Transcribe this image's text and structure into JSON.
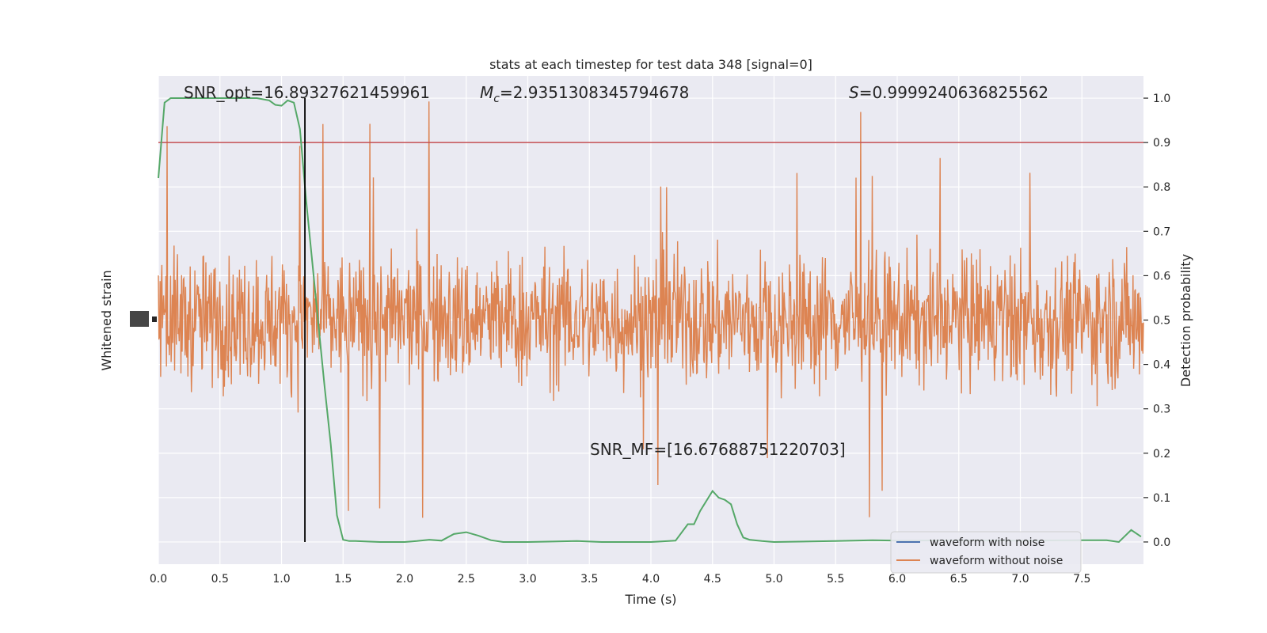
{
  "chart_data": {
    "type": "line",
    "title": "stats at each timestep for test data 348 [signal=0]",
    "xlabel": "Time (s)",
    "ylabel_left": "Whitened strain",
    "ylabel_right": "Detection probability",
    "xlim": [
      0.0,
      8.0
    ],
    "ylim_right": [
      -0.05,
      1.05
    ],
    "ylim_strain": [
      -2.0,
      2.0
    ],
    "x_ticks": [
      "0.0",
      "0.5",
      "1.0",
      "1.5",
      "2.0",
      "2.5",
      "3.0",
      "3.5",
      "4.0",
      "4.5",
      "5.0",
      "5.5",
      "6.0",
      "6.5",
      "7.0",
      "7.5"
    ],
    "x_tick_values": [
      0.0,
      0.5,
      1.0,
      1.5,
      2.0,
      2.5,
      3.0,
      3.5,
      4.0,
      4.5,
      5.0,
      5.5,
      6.0,
      6.5,
      7.0,
      7.5
    ],
    "y_ticks_right": [
      "0.0",
      "0.1",
      "0.2",
      "0.3",
      "0.4",
      "0.5",
      "0.6",
      "0.7",
      "0.8",
      "0.9",
      "1.0"
    ],
    "y_tick_values_right": [
      0.0,
      0.1,
      0.2,
      0.3,
      0.4,
      0.5,
      0.6,
      0.7,
      0.8,
      0.9,
      1.0
    ],
    "threshold": 0.9,
    "vertical_line_time": 1.19,
    "annotations": {
      "snr_opt": "SNR_opt=16.89327621459961",
      "mc_symbol": "M",
      "mc_sub": "c",
      "mc_value": "=2.9351308345794678",
      "s_symbol": "S",
      "s_value": "=0.9999240636825562",
      "snr_mf": "SNR_MF=[16.67688751220703]"
    },
    "series": [
      {
        "name": "detection probability",
        "x": [
          0.0,
          0.05,
          0.1,
          0.2,
          0.3,
          0.4,
          0.5,
          0.6,
          0.7,
          0.8,
          0.9,
          0.95,
          1.0,
          1.05,
          1.1,
          1.15,
          1.2,
          1.25,
          1.3,
          1.35,
          1.4,
          1.45,
          1.5,
          1.55,
          1.6,
          1.8,
          2.0,
          2.1,
          2.2,
          2.3,
          2.4,
          2.5,
          2.6,
          2.7,
          2.8,
          3.0,
          3.4,
          3.6,
          4.0,
          4.2,
          4.3,
          4.35,
          4.4,
          4.5,
          4.55,
          4.6,
          4.65,
          4.7,
          4.75,
          4.8,
          4.9,
          5.0,
          5.5,
          5.8,
          6.0,
          6.5,
          7.0,
          7.5,
          7.7,
          7.8,
          7.9,
          7.98
        ],
        "values": [
          0.82,
          0.99,
          1.0,
          1.0,
          1.0,
          1.0,
          1.0,
          1.0,
          1.0,
          1.0,
          0.995,
          0.985,
          0.983,
          0.995,
          0.99,
          0.93,
          0.77,
          0.63,
          0.49,
          0.35,
          0.22,
          0.06,
          0.005,
          0.002,
          0.002,
          0.0,
          0.0,
          0.002,
          0.005,
          0.003,
          0.018,
          0.022,
          0.014,
          0.004,
          0.0,
          0.0,
          0.002,
          0.0,
          0.0,
          0.003,
          0.04,
          0.04,
          0.07,
          0.115,
          0.1,
          0.095,
          0.085,
          0.04,
          0.01,
          0.005,
          0.002,
          0.0,
          0.002,
          0.004,
          0.003,
          0.004,
          0.003,
          0.004,
          0.004,
          0.0,
          0.027,
          0.012
        ]
      },
      {
        "name": "waveform without noise",
        "note": "dense whitened strain samples, roughly symmetric about 0, |amplitude| mostly under 1.0 with occasional spikes up to about 1.8",
        "amplitude_typical": 1.0,
        "amplitude_max": 1.85
      }
    ],
    "legend": {
      "position": "lower-right",
      "items": [
        {
          "label": "waveform with noise",
          "color": "#4c72b0"
        },
        {
          "label": "waveform without noise",
          "color": "#dd8452"
        }
      ]
    },
    "colors": {
      "background": "#eaeaf2",
      "grid": "#ffffff",
      "strain": "#dd8452",
      "probability": "#55a868",
      "threshold": "#c44e52",
      "vline": "#000000"
    }
  }
}
